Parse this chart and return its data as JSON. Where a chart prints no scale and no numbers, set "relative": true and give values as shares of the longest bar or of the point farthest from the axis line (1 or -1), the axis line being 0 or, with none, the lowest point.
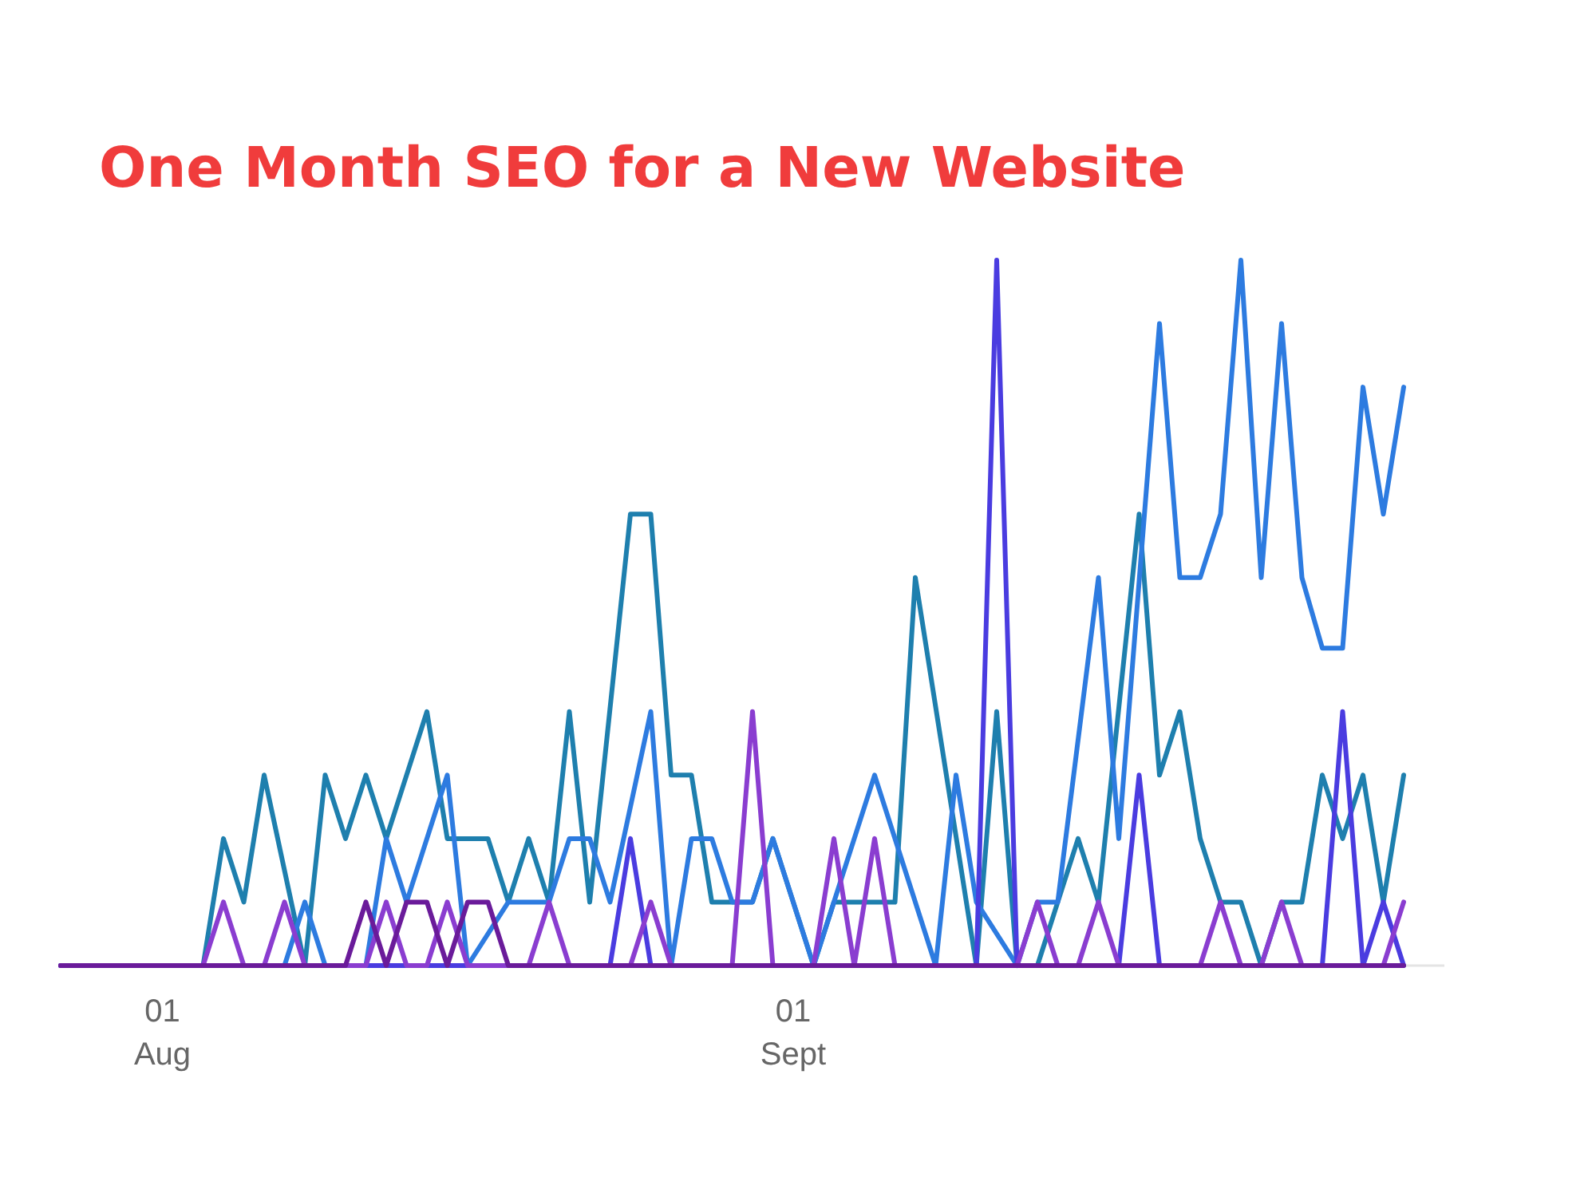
{
  "chart_data": {
    "type": "line",
    "title": "One Month SEO for a New Website",
    "relative": true,
    "xlim": [
      "--07-27",
      "--10-03"
    ],
    "xticks": [
      {
        "value": "--08-01",
        "label": "01\nAug"
      },
      {
        "value": "--09-01",
        "label": "01\nSept"
      }
    ],
    "tick_labels": "x",
    "line_style": "solid",
    "marker": "none",
    "series": [
      {
        "color": "#1e7fae",
        "x": [
          "--07-27",
          "--08-03",
          "--08-04",
          "--08-05",
          "--08-06",
          "--08-08",
          "--08-09",
          "--08-10",
          "--08-11",
          "--08-12",
          "--08-14",
          "--08-15",
          "--08-17",
          "--08-18",
          "--08-19",
          "--08-20",
          "--08-21",
          "--08-22",
          "--08-24",
          "--08-25",
          "--08-26",
          "--08-27",
          "--08-28",
          "--08-30",
          "--08-31",
          "--09-01",
          "--09-02",
          "--09-03",
          "--09-06",
          "--09-07",
          "--09-10",
          "--09-11",
          "--09-12",
          "--09-13",
          "--09-14",
          "--09-15",
          "--09-16",
          "--09-18",
          "--09-19",
          "--09-20",
          "--09-21",
          "--09-22",
          "--09-23",
          "--09-24",
          "--09-25",
          "--09-26",
          "--09-27",
          "--09-28",
          "--09-29",
          "--09-30",
          "--10-01"
        ],
        "values": [
          0,
          0,
          0.18,
          0.09,
          0.27,
          0,
          0.27,
          0.18,
          0.27,
          0.18,
          0.36,
          0.18,
          0.18,
          0.09,
          0.18,
          0.09,
          0.36,
          0.09,
          0.64,
          0.64,
          0.27,
          0.27,
          0.09,
          0.09,
          0.18,
          0.09,
          0,
          0.09,
          0.09,
          0.55,
          0,
          0.36,
          0,
          0,
          0.09,
          0.18,
          0.09,
          0.64,
          0.27,
          0.36,
          0.18,
          0.09,
          0.09,
          0,
          0.09,
          0.09,
          0.27,
          0.18,
          0.27,
          0.09,
          0.27
        ]
      },
      {
        "color": "#2d7be0",
        "x": [
          "--07-27",
          "--08-07",
          "--08-08",
          "--08-09",
          "--08-11",
          "--08-12",
          "--08-13",
          "--08-15",
          "--08-16",
          "--08-18",
          "--08-20",
          "--08-21",
          "--08-22",
          "--08-23",
          "--08-25",
          "--08-26",
          "--08-27",
          "--08-28",
          "--08-29",
          "--08-30",
          "--08-31",
          "--09-01",
          "--09-02",
          "--09-05",
          "--09-08",
          "--09-09",
          "--09-10",
          "--09-12",
          "--09-13",
          "--09-14",
          "--09-16",
          "--09-17",
          "--09-19",
          "--09-20",
          "--09-21",
          "--09-22",
          "--09-23",
          "--09-24",
          "--09-25",
          "--09-26",
          "--09-27",
          "--09-28",
          "--09-29",
          "--09-30",
          "--10-01"
        ],
        "values": [
          0,
          0,
          0.09,
          0,
          0,
          0.18,
          0.09,
          0.27,
          0,
          0.09,
          0.09,
          0.18,
          0.18,
          0.09,
          0.36,
          0,
          0.18,
          0.18,
          0.09,
          0.09,
          0.18,
          0.09,
          0,
          0.27,
          0,
          0.27,
          0.09,
          0,
          0.09,
          0.09,
          0.55,
          0.18,
          0.91,
          0.55,
          0.55,
          0.64,
          1,
          0.55,
          0.91,
          0.55,
          0.45,
          0.45,
          0.82,
          0.64,
          0.82
        ]
      },
      {
        "color": "#4a3ce0",
        "x": [
          "--07-27",
          "--08-23",
          "--08-24",
          "--08-25",
          "--09-10",
          "--09-11",
          "--09-12",
          "--09-17",
          "--09-18",
          "--09-19",
          "--09-27",
          "--09-28",
          "--09-29",
          "--09-30",
          "--10-01"
        ],
        "values": [
          0,
          0,
          0.18,
          0,
          0,
          1,
          0,
          0,
          0.27,
          0,
          0,
          0.36,
          0,
          0.09,
          0
        ]
      },
      {
        "color": "#8a3dd0",
        "x": [
          "--07-27",
          "--08-03",
          "--08-04",
          "--08-05",
          "--08-06",
          "--08-07",
          "--08-08",
          "--08-11",
          "--08-12",
          "--08-13",
          "--08-14",
          "--08-15",
          "--08-16",
          "--08-19",
          "--08-20",
          "--08-21",
          "--08-24",
          "--08-25",
          "--08-26",
          "--08-29",
          "--08-30",
          "--08-31",
          "--09-02",
          "--09-03",
          "--09-04",
          "--09-05",
          "--09-06",
          "--09-12",
          "--09-13",
          "--09-14",
          "--09-15",
          "--09-16",
          "--09-17",
          "--09-21",
          "--09-22",
          "--09-23",
          "--09-24",
          "--09-25",
          "--09-26",
          "--09-30",
          "--10-01"
        ],
        "values": [
          0,
          0,
          0.09,
          0,
          0,
          0.09,
          0,
          0,
          0.09,
          0,
          0,
          0.09,
          0,
          0,
          0.09,
          0,
          0,
          0.09,
          0,
          0,
          0.36,
          0,
          0,
          0.18,
          0,
          0.18,
          0,
          0,
          0.09,
          0,
          0,
          0.09,
          0,
          0,
          0.09,
          0,
          0,
          0.09,
          0,
          0,
          0.09
        ]
      },
      {
        "color": "#6a1b9a",
        "x": [
          "--07-27",
          "--08-10",
          "--08-11",
          "--08-12",
          "--08-13",
          "--08-14",
          "--08-15",
          "--08-16",
          "--08-17",
          "--08-18",
          "--10-01"
        ],
        "values": [
          0,
          0,
          0.09,
          0,
          0.09,
          0.09,
          0,
          0.09,
          0.09,
          0,
          0
        ]
      }
    ]
  }
}
